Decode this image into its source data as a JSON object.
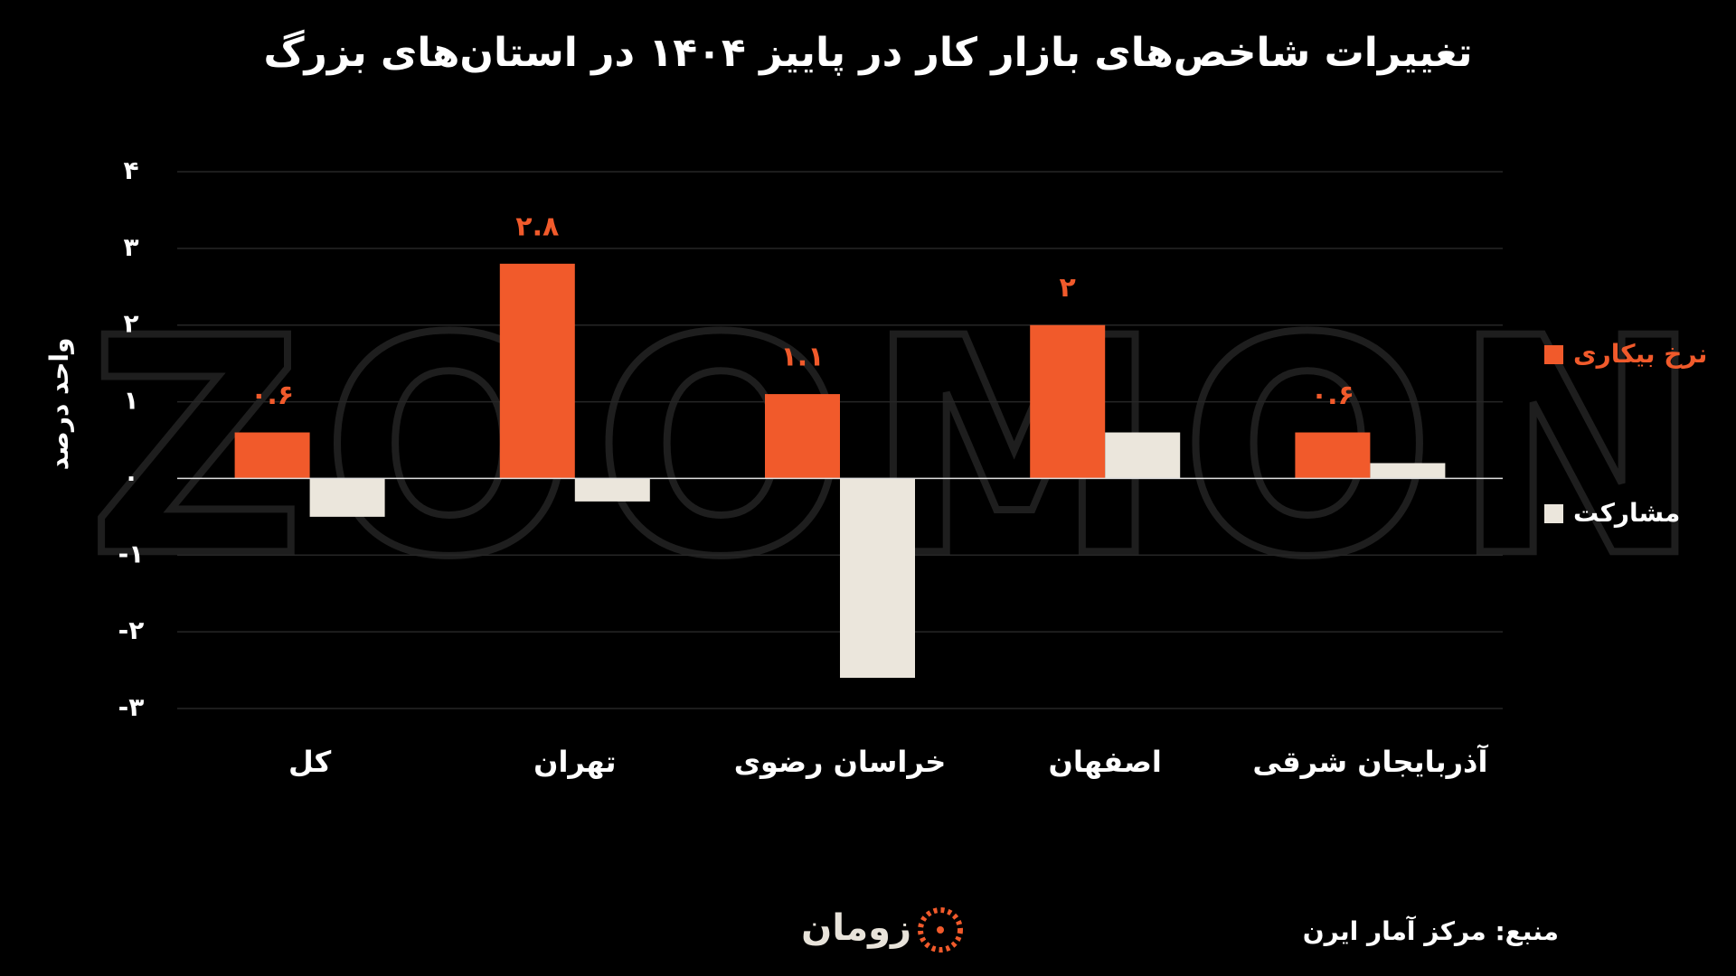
{
  "chart_data": {
    "type": "bar",
    "title": "تغییرات شاخص‌های بازار کار در پاییز ۱۴۰۴ در استان‌های بزرگ",
    "y_label": "واحد درصد",
    "watermark": "ZOOMON",
    "source": "منبع: مرکز آمار ایرن",
    "logo": "زومان",
    "categories": [
      "کل",
      "تهران",
      "خراسان رضوی",
      "اصفهان",
      "آذربایجان شرقی"
    ],
    "series": [
      {
        "name": "نرخ بیکاری",
        "color": "#f15a2b",
        "values": [
          0.6,
          2.8,
          1.1,
          2,
          0.6
        ],
        "value_labels": [
          "۰.۶",
          "۲.۸",
          "۱.۱",
          "۲",
          "۰.۶"
        ]
      },
      {
        "name": "مشارکت",
        "color": "#ebe6dc",
        "values": [
          -0.5,
          -0.3,
          -2.6,
          0.6,
          0.2
        ]
      }
    ],
    "ylim": [
      -3,
      4
    ],
    "yticks": [
      {
        "value": 4,
        "label": "۴"
      },
      {
        "value": 3,
        "label": "۳"
      },
      {
        "value": 2,
        "label": "۲"
      },
      {
        "value": 1,
        "label": "۱"
      },
      {
        "value": 0,
        "label": "۰"
      },
      {
        "value": -1,
        "label": "-۱"
      },
      {
        "value": -2,
        "label": "-۲"
      },
      {
        "value": -3,
        "label": "-۳"
      }
    ],
    "grid": true,
    "legend": "right"
  }
}
